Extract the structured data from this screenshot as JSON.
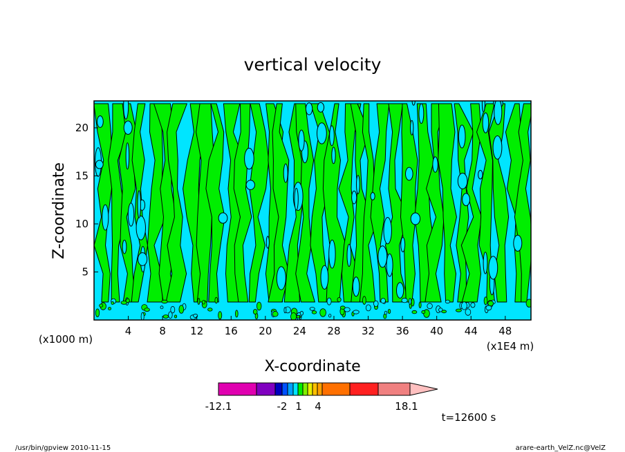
{
  "chart_data": {
    "type": "contour",
    "title": "vertical velocity",
    "xlabel": "X-coordinate",
    "ylabel": "Z-coordinate",
    "x_unit_left": "(x1000 m)",
    "x_unit_right": "(x1E4 m)",
    "xlim": [
      0,
      51
    ],
    "ylim": [
      0,
      22.8
    ],
    "xticks": [
      4,
      8,
      12,
      16,
      20,
      24,
      28,
      32,
      36,
      40,
      44,
      48
    ],
    "yticks": [
      5,
      10,
      15,
      20
    ],
    "colors": {
      "positive_fill": "#00ee00",
      "negative_fill": "#00e5ff",
      "frame": "#000000"
    },
    "colorbar": {
      "segments": [
        "#e000b0",
        "#8000c0",
        "#0000c0",
        "#0050ff",
        "#00a0ff",
        "#00e5ff",
        "#00ee00",
        "#80f000",
        "#e8f000",
        "#ffc000",
        "#ffa000",
        "#ff7000",
        "#ff2020",
        "#f08080",
        "#ffc0c0"
      ],
      "labels": [
        "-12.1",
        "-2",
        "1",
        "4",
        "18.1"
      ]
    },
    "time_label": "t=12600 s"
  },
  "footer": {
    "left": "/usr/bin/gpview 2010-11-15",
    "right": "arare-earth_VelZ.nc@VelZ"
  }
}
